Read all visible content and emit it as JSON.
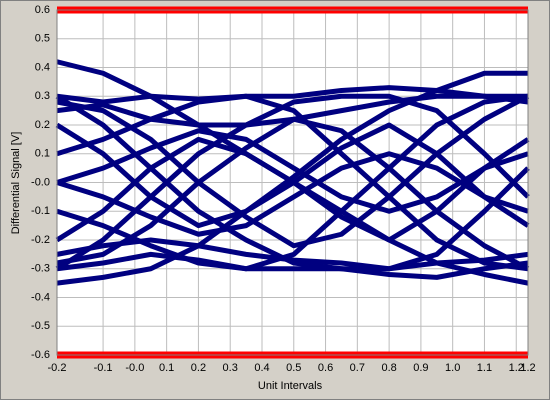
{
  "chart_data": {
    "type": "line",
    "xlabel": "Unit Intervals",
    "ylabel": "Differential Signal  [V]",
    "xlim": [
      -0.245,
      1.237
    ],
    "ylim": [
      -0.6,
      0.6
    ],
    "xticks": [
      {
        "value": -0.245,
        "label": "-0.2"
      },
      -0.1,
      {
        "value": 0,
        "label": "-0.0"
      },
      0.1,
      0.2,
      0.3,
      0.4,
      0.5,
      0.6,
      0.7,
      0.8,
      0.9,
      {
        "value": 1,
        "label": "1.0"
      },
      1.1,
      1.2,
      {
        "value": 1.237,
        "label": "1.2"
      }
    ],
    "yticks": [
      0.6,
      0.5,
      0.4,
      0.3,
      0.2,
      0.1,
      {
        "value": 0,
        "label": "-0.0"
      },
      -0.1,
      -0.2,
      -0.3,
      -0.4,
      -0.5,
      -0.6
    ],
    "grid": true,
    "limit_lines": [
      {
        "value": 0.6,
        "color": "#ff0000"
      },
      {
        "value": -0.6,
        "color": "#ff0000"
      }
    ],
    "x": [
      -0.245,
      -0.1,
      0.05,
      0.2,
      0.35,
      0.5,
      0.65,
      0.8,
      0.95,
      1.1,
      1.237
    ],
    "series": [
      {
        "color": "#000080",
        "values": [
          0.3,
          0.28,
          0.3,
          0.29,
          0.3,
          0.3,
          0.32,
          0.33,
          0.32,
          0.3,
          0.3
        ]
      },
      {
        "color": "#000080",
        "values": [
          0.25,
          0.27,
          0.22,
          0.2,
          0.2,
          0.22,
          0.25,
          0.28,
          0.3,
          0.3,
          0.28
        ]
      },
      {
        "color": "#000080",
        "values": [
          -0.3,
          -0.28,
          -0.25,
          -0.27,
          -0.3,
          -0.3,
          -0.3,
          -0.32,
          -0.33,
          -0.3,
          -0.28
        ]
      },
      {
        "color": "#000080",
        "values": [
          -0.25,
          -0.22,
          -0.2,
          -0.22,
          -0.25,
          -0.27,
          -0.28,
          -0.3,
          -0.28,
          -0.27,
          -0.25
        ]
      },
      {
        "color": "#000080",
        "values": [
          0.3,
          0.2,
          0.05,
          -0.1,
          -0.2,
          -0.28,
          -0.3,
          -0.3,
          -0.25,
          -0.1,
          0.05
        ]
      },
      {
        "color": "#000080",
        "values": [
          -0.3,
          -0.2,
          -0.05,
          0.1,
          0.2,
          0.28,
          0.3,
          0.3,
          0.25,
          0.1,
          -0.05
        ]
      },
      {
        "color": "#000080",
        "values": [
          0.28,
          0.25,
          0.15,
          0.0,
          -0.12,
          -0.22,
          -0.18,
          -0.05,
          0.1,
          0.22,
          0.3
        ]
      },
      {
        "color": "#000080",
        "values": [
          -0.28,
          -0.25,
          -0.15,
          0.0,
          0.12,
          0.22,
          0.18,
          0.05,
          -0.1,
          -0.22,
          -0.3
        ]
      },
      {
        "color": "#000080",
        "values": [
          0.42,
          0.38,
          0.3,
          0.2,
          0.1,
          0.0,
          -0.1,
          -0.2,
          -0.28,
          -0.32,
          -0.35
        ]
      },
      {
        "color": "#000080",
        "values": [
          -0.35,
          -0.33,
          -0.3,
          -0.22,
          -0.1,
          0.02,
          0.15,
          0.25,
          0.32,
          0.38,
          0.38
        ]
      },
      {
        "color": "#000080",
        "values": [
          0.1,
          0.15,
          0.22,
          0.28,
          0.3,
          0.25,
          0.1,
          -0.05,
          -0.2,
          -0.28,
          -0.3
        ]
      },
      {
        "color": "#000080",
        "values": [
          -0.1,
          -0.15,
          -0.22,
          -0.28,
          -0.3,
          -0.25,
          -0.1,
          0.05,
          0.2,
          0.28,
          0.3
        ]
      },
      {
        "color": "#000080",
        "values": [
          0.0,
          0.05,
          0.12,
          0.18,
          0.15,
          0.05,
          -0.05,
          -0.1,
          -0.05,
          0.05,
          0.1
        ]
      },
      {
        "color": "#000080",
        "values": [
          0.0,
          -0.05,
          -0.12,
          -0.18,
          -0.15,
          -0.05,
          0.05,
          0.1,
          0.05,
          -0.05,
          -0.1
        ]
      },
      {
        "color": "#000080",
        "values": [
          0.2,
          0.1,
          -0.05,
          -0.15,
          -0.1,
          0.0,
          0.12,
          0.2,
          0.1,
          -0.05,
          -0.15
        ]
      },
      {
        "color": "#000080",
        "values": [
          -0.2,
          -0.1,
          0.05,
          0.15,
          0.1,
          0.0,
          -0.12,
          -0.2,
          -0.1,
          0.05,
          0.15
        ]
      }
    ]
  }
}
